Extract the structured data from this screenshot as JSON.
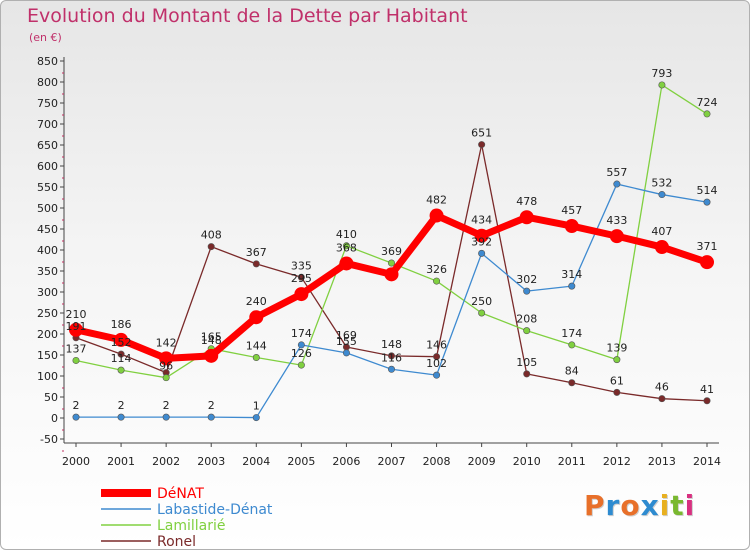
{
  "title": "Evolution du Montant de la Dette par Habitant",
  "unit": "(en €)",
  "logo": [
    "P",
    "r",
    "o",
    "x",
    "i",
    "t",
    "i"
  ],
  "logo_colors": [
    "#e8702a",
    "#2e8bd0",
    "#e8702a",
    "#2e8bd0",
    "#e8b020",
    "#7ab830",
    "#d83080"
  ],
  "chart_data": {
    "type": "line",
    "title": "Evolution du Montant de la Dette par Habitant",
    "ylabel": "(en €)",
    "xlabel": "",
    "x": [
      "2000",
      "2001",
      "2002",
      "2003",
      "2004",
      "2005",
      "2006",
      "2007",
      "2008",
      "2009",
      "2010",
      "2011",
      "2012",
      "2013",
      "2014"
    ],
    "yticks": [
      "-50",
      "0",
      "50",
      "100",
      "150",
      "200",
      "250",
      "300",
      "350",
      "400",
      "450",
      "500",
      "550",
      "600",
      "650",
      "700",
      "750",
      "800",
      "850"
    ],
    "ylim": [
      -50,
      850
    ],
    "grid": false,
    "legend_position": "bottom-left",
    "series": [
      {
        "name": "DéNAT",
        "color": "#ff0000",
        "values": [
          210,
          186,
          142,
          148,
          240,
          295,
          368,
          342,
          482,
          434,
          478,
          457,
          433,
          407,
          371
        ],
        "labels": [
          "210",
          "186",
          "142",
          "148",
          "240",
          "295",
          "368",
          "",
          "482",
          "434",
          "478",
          "457",
          "433",
          "407",
          "371"
        ]
      },
      {
        "name": "Labastide-Dénat",
        "color": "#3e8ad0",
        "values": [
          2,
          2,
          2,
          2,
          1,
          174,
          155,
          116,
          102,
          392,
          302,
          314,
          557,
          532,
          514
        ],
        "labels": [
          "2",
          "2",
          "2",
          "2",
          "1",
          "174",
          "155",
          "116",
          "102",
          "392",
          "302",
          "314",
          "557",
          "532",
          "514"
        ]
      },
      {
        "name": "Lamillarié",
        "color": "#80d040",
        "values": [
          137,
          114,
          96,
          165,
          144,
          126,
          410,
          369,
          326,
          250,
          208,
          174,
          139,
          793,
          724
        ],
        "labels": [
          "137",
          "114",
          "96",
          "165",
          "144",
          "126",
          "410",
          "369",
          "326",
          "250",
          "208",
          "174",
          "139",
          "793",
          "724"
        ]
      },
      {
        "name": "Ronel",
        "color": "#7a2a2a",
        "values": [
          191,
          152,
          108,
          408,
          367,
          335,
          169,
          148,
          146,
          651,
          105,
          84,
          61,
          46,
          41
        ],
        "labels": [
          "191",
          "152",
          "",
          "408",
          "367",
          "335",
          "169",
          "148",
          "146",
          "651",
          "105",
          "84",
          "61",
          "46",
          "41"
        ]
      }
    ]
  }
}
